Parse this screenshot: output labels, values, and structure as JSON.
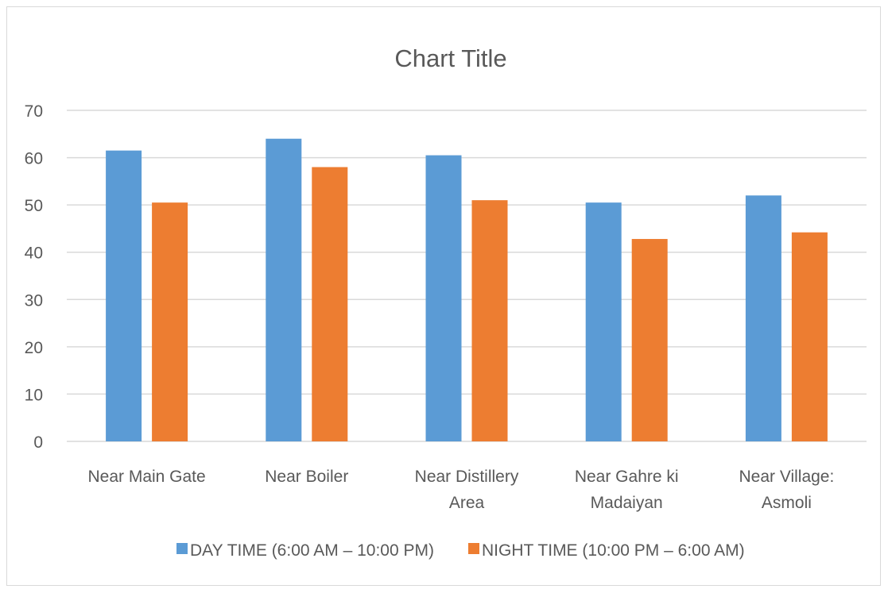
{
  "chart_data": {
    "type": "bar",
    "title": "Chart Title",
    "xlabel": "",
    "ylabel": "",
    "ylim": [
      0,
      70
    ],
    "yticks": [
      "0",
      "10",
      "20",
      "30",
      "40",
      "50",
      "60",
      "70"
    ],
    "grid": true,
    "legend_position": "bottom",
    "categories": [
      [
        "Near Main Gate"
      ],
      [
        "Near Boiler"
      ],
      [
        "Near Distillery",
        "Area"
      ],
      [
        "Near Gahre ki",
        "Madaiyan"
      ],
      [
        "Near Village:",
        "Asmoli"
      ]
    ],
    "series": [
      {
        "name": "DAY TIME (6:00 AM – 10:00 PM)",
        "color": "#5b9bd5",
        "values": [
          61.5,
          64,
          60.5,
          50.5,
          52
        ]
      },
      {
        "name": "NIGHT TIME (10:00 PM – 6:00 AM)",
        "color": "#ed7d31",
        "values": [
          50.5,
          58,
          51,
          42.8,
          44.2
        ]
      }
    ]
  }
}
